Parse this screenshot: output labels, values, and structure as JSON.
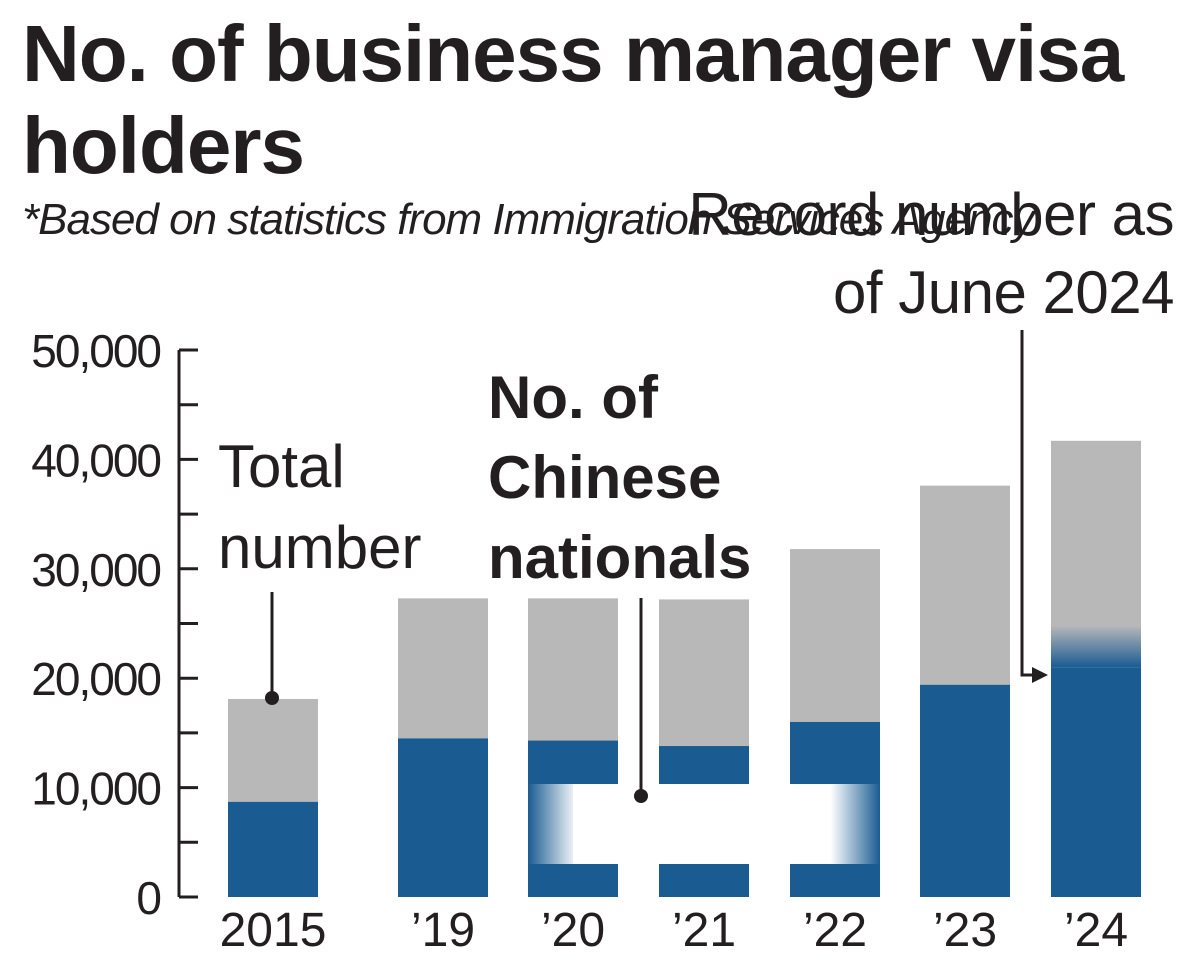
{
  "chart_data": {
    "type": "bar",
    "title": "No. of business manager visa holders",
    "source_note": "*Based on statistics from Immigration Services Agency",
    "categories": [
      "2015",
      "’19",
      "’20",
      "’21",
      "’22",
      "’23",
      "’24"
    ],
    "series": [
      {
        "name": "Total number",
        "values": [
          18100,
          27300,
          27300,
          27200,
          31800,
          37600,
          41700
        ]
      },
      {
        "name": "No. of Chinese nationals",
        "values": [
          8700,
          14500,
          14300,
          13800,
          16000,
          19400,
          21000
        ]
      }
    ],
    "ylim": [
      0,
      50000
    ],
    "yticks": [
      "0",
      "10,000",
      "20,000",
      "30,000",
      "40,000",
      "50,000"
    ],
    "annotations": {
      "total": [
        "Total",
        "number"
      ],
      "chinese": [
        "No. of",
        "Chinese",
        "nationals"
      ],
      "record": [
        "Record number as",
        "of June 2024"
      ]
    },
    "colors": {
      "total": "#b8b8b9",
      "chinese": "#1a5c92",
      "text": "#231f20"
    }
  }
}
